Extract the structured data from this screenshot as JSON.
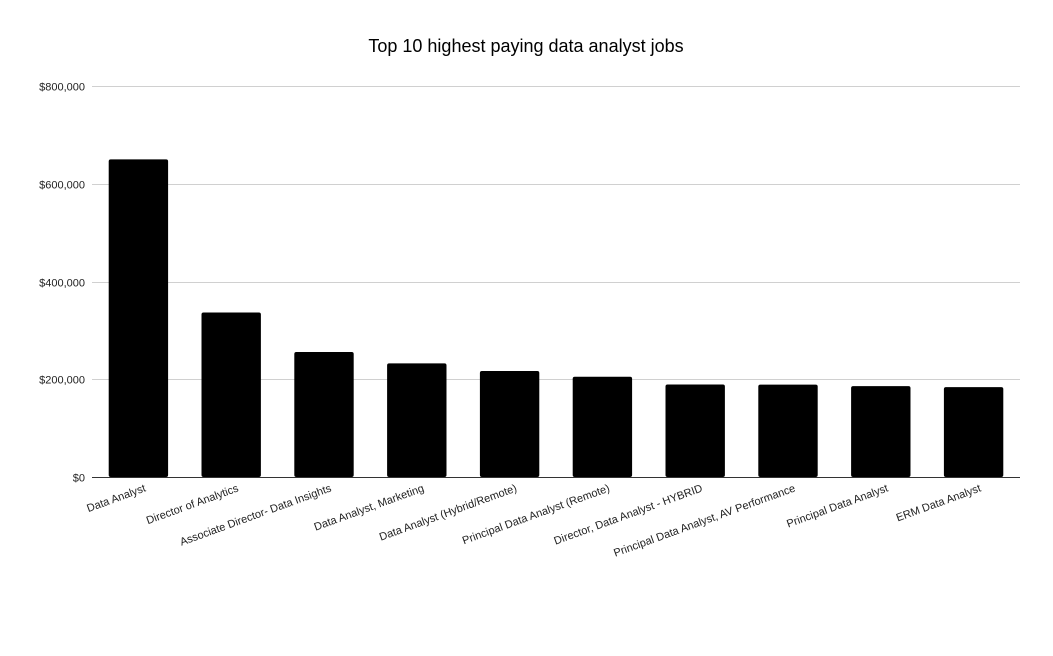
{
  "chart_data": {
    "type": "bar",
    "title": "Top 10 highest paying data analyst jobs",
    "xlabel": "",
    "ylabel": "",
    "categories": [
      "Data Analyst",
      "Director of Analytics",
      "Associate Director- Data Insights",
      "Data Analyst, Marketing",
      "Data Analyst (Hybrid/Remote)",
      "Principal Data Analyst (Remote)",
      "Director, Data Analyst - HYBRID",
      "Principal Data Analyst, AV Performance",
      "Principal Data Analyst",
      "ERM Data Analyst"
    ],
    "values": [
      650000,
      336500,
      255830,
      232423,
      217000,
      205000,
      189309,
      189000,
      186000,
      184000
    ],
    "ylim": [
      0,
      800000
    ],
    "yticks": [
      0,
      200000,
      400000,
      600000,
      800000
    ],
    "ytick_labels": [
      "$0",
      "$200,000",
      "$400,000",
      "$600,000",
      "$800,000"
    ],
    "bar_color": "#000000",
    "grid": true,
    "legend": "none"
  }
}
